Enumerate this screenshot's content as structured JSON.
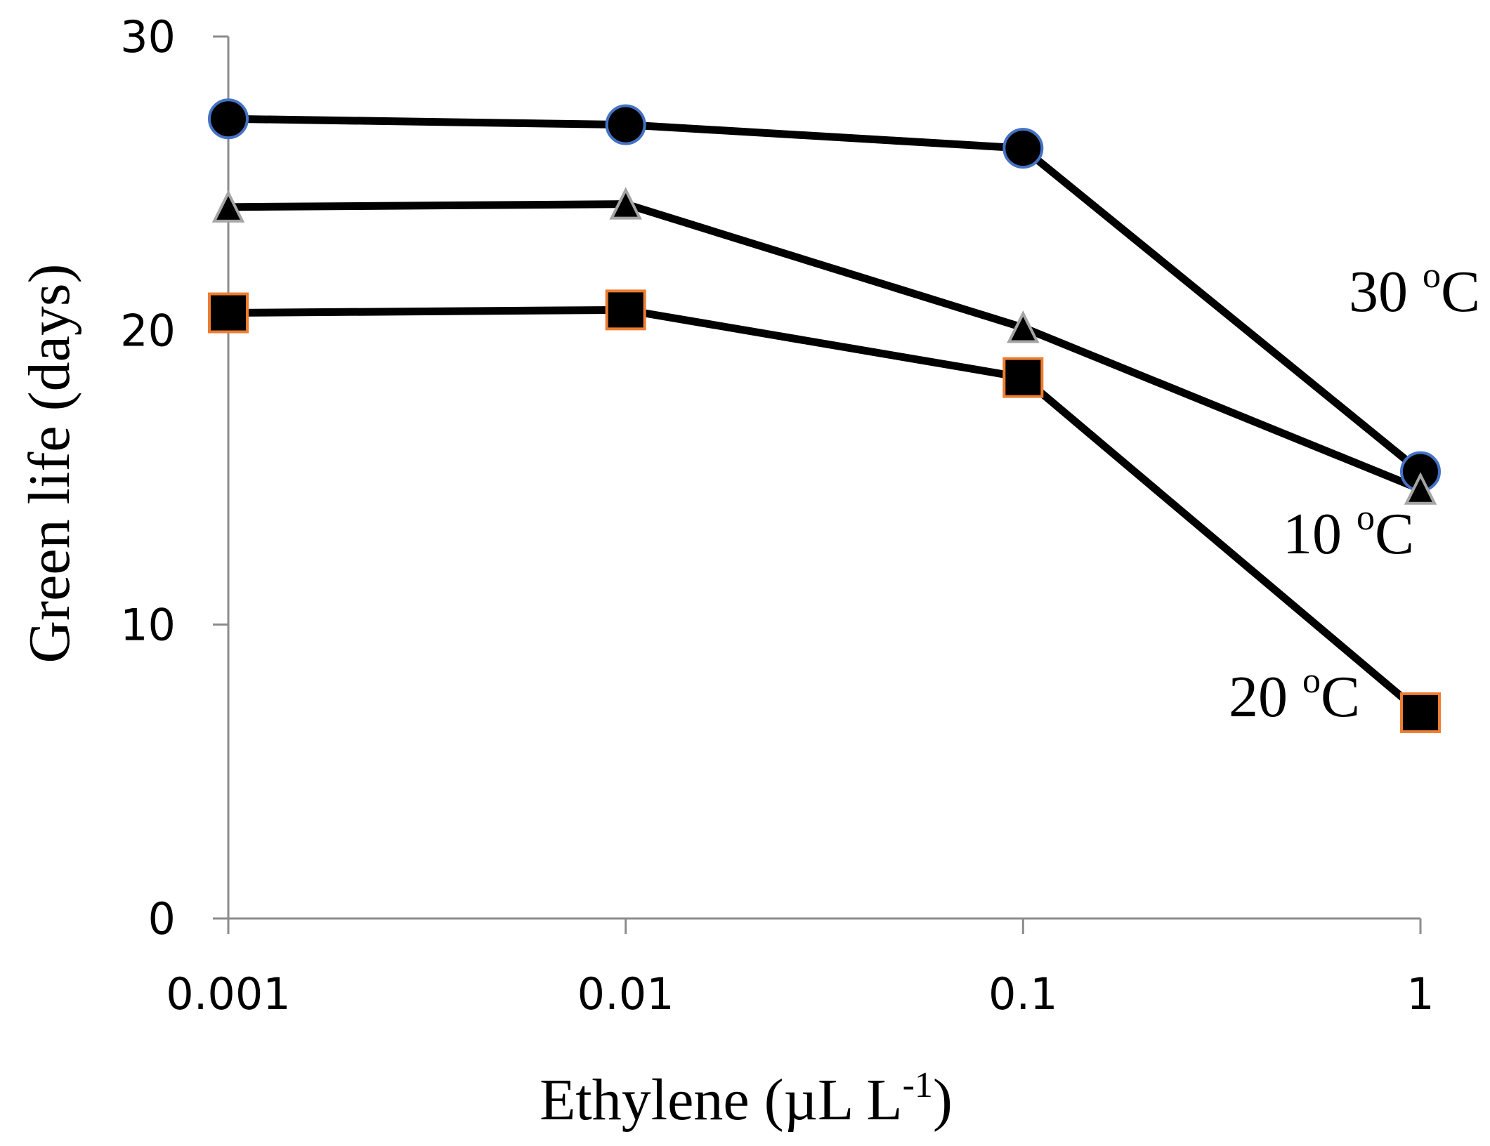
{
  "chart_data": {
    "type": "line",
    "title": "",
    "xlabel": "Ethylene (µL L",
    "xlabel_superscript": "-1",
    "xlabel_suffix": ")",
    "ylabel": "Green life (days)",
    "x_scale": "log",
    "categories": [
      "0.001",
      "0.01",
      "0.1",
      "1"
    ],
    "x": [
      0.001,
      0.01,
      0.1,
      1
    ],
    "ylim": [
      0,
      30
    ],
    "yticks": [
      "0",
      "10",
      "20",
      "30"
    ],
    "ytick_values": [
      0,
      10,
      20,
      30
    ],
    "grid": false,
    "series": [
      {
        "name": "30 ºC",
        "label_main": "30 ",
        "label_degree": "o",
        "label_unit": "C",
        "marker": "circle",
        "marker_fill": "#000000",
        "marker_edge": "#4472c4",
        "values": [
          27.2,
          27.0,
          26.2,
          15.2
        ]
      },
      {
        "name": "10 ºC",
        "label_main": "10 ",
        "label_degree": "o",
        "label_unit": "C",
        "marker": "triangle",
        "marker_fill": "#000000",
        "marker_edge": "#a5a5a5",
        "values": [
          24.2,
          24.3,
          20.1,
          14.6
        ]
      },
      {
        "name": "20 ºC",
        "label_main": "20 ",
        "label_degree": "o",
        "label_unit": "C",
        "marker": "square",
        "marker_fill": "#000000",
        "marker_edge": "#ed7d31",
        "values": [
          20.6,
          20.7,
          18.4,
          7.0
        ]
      }
    ]
  }
}
